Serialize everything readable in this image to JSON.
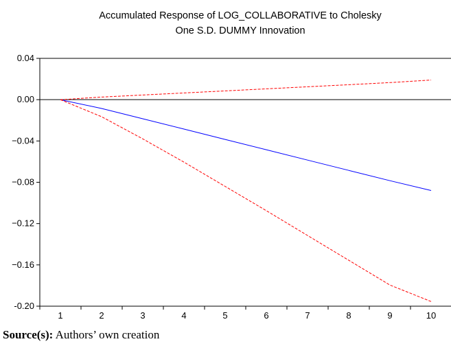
{
  "caption": {
    "label": "Source(s):",
    "text": " Authors’ own creation"
  },
  "chart_data": {
    "type": "line",
    "title": "Accumulated Response of LOG_COLLABORATIVE to Cholesky",
    "subtitle": "One S.D. DUMMY Innovation",
    "xlabel": "",
    "ylabel": "",
    "x": [
      1,
      2,
      3,
      4,
      5,
      6,
      7,
      8,
      9,
      10
    ],
    "xlim": [
      0.5,
      10.5
    ],
    "ylim": [
      -0.2,
      0.04
    ],
    "yticks": [
      0.04,
      0.0,
      -0.04,
      -0.08,
      -0.12,
      -0.16,
      -0.2
    ],
    "ytick_labels": [
      "0.04",
      "0.00",
      "−0.04",
      "−0.08",
      "−0.12",
      "−0.16",
      "-0.20"
    ],
    "zero_line": true,
    "grid": false,
    "legend": "none",
    "series": [
      {
        "role": "response",
        "color": "#0000ff",
        "style": "solid",
        "values": [
          0.0,
          -0.0085,
          -0.0185,
          -0.0285,
          -0.0385,
          -0.0485,
          -0.0585,
          -0.0685,
          -0.0785,
          -0.088
        ]
      },
      {
        "role": "upper band",
        "color": "#ff0000",
        "style": "dashed",
        "values": [
          0.0,
          0.0025,
          0.0045,
          0.0065,
          0.0085,
          0.0105,
          0.0125,
          0.0145,
          0.0165,
          0.019
        ]
      },
      {
        "role": "lower band",
        "color": "#ff0000",
        "style": "dashed",
        "values": [
          0.0,
          -0.0165,
          -0.038,
          -0.0605,
          -0.084,
          -0.1075,
          -0.1315,
          -0.1555,
          -0.1795,
          -0.1955
        ]
      }
    ]
  }
}
